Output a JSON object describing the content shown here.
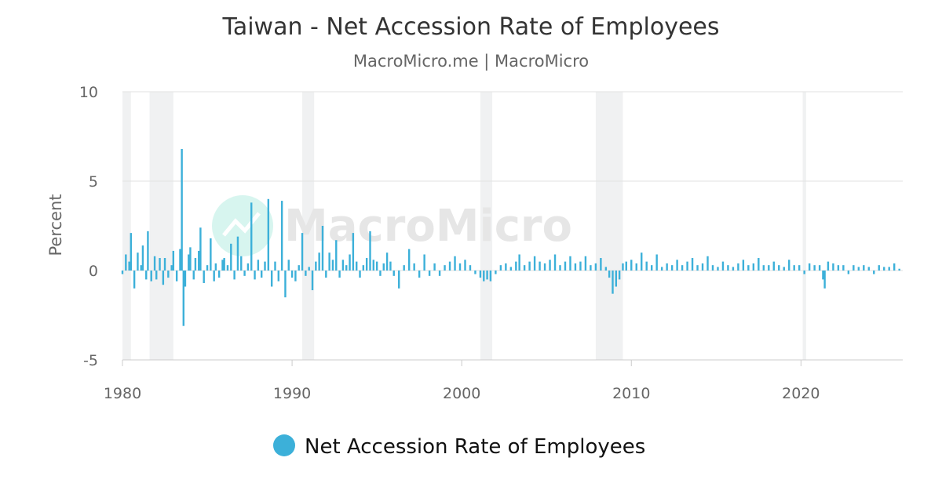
{
  "chart_data": {
    "type": "bar",
    "title": "Taiwan - Net Accession Rate of Employees",
    "subtitle": "MacroMicro.me | MacroMicro",
    "ylabel": "Percent",
    "xlabel": "",
    "ylim": [
      -5,
      10
    ],
    "yticks": [
      10,
      5,
      0,
      -5
    ],
    "xlim": [
      1980,
      2026
    ],
    "xticks": [
      1980,
      1990,
      2000,
      2010,
      2020
    ],
    "grid": true,
    "legend_position": "bottom-center",
    "watermark": "MacroMicro",
    "recession_periods": [
      [
        1980.0,
        1980.5
      ],
      [
        1981.6,
        1983.0
      ],
      [
        1990.6,
        1991.3
      ],
      [
        2001.1,
        2001.8
      ],
      [
        2007.9,
        2009.5
      ],
      [
        2020.1,
        2020.3
      ]
    ],
    "series": [
      {
        "name": "Net Accession Rate of Employees",
        "color": "#3cb0d9",
        "points": [
          [
            1980.0,
            -0.2
          ],
          [
            1980.2,
            0.9
          ],
          [
            1980.4,
            0.5
          ],
          [
            1980.5,
            2.1
          ],
          [
            1980.7,
            -1.0
          ],
          [
            1980.9,
            1.0
          ],
          [
            1981.1,
            0.3
          ],
          [
            1981.2,
            1.4
          ],
          [
            1981.4,
            -0.5
          ],
          [
            1981.5,
            2.2
          ],
          [
            1981.7,
            -0.6
          ],
          [
            1981.9,
            0.8
          ],
          [
            1982.0,
            -0.5
          ],
          [
            1982.2,
            0.7
          ],
          [
            1982.4,
            -0.8
          ],
          [
            1982.5,
            0.7
          ],
          [
            1982.7,
            -0.4
          ],
          [
            1982.9,
            0.3
          ],
          [
            1983.0,
            1.1
          ],
          [
            1983.2,
            -0.6
          ],
          [
            1983.4,
            1.2
          ],
          [
            1983.5,
            6.8
          ],
          [
            1983.6,
            -3.1
          ],
          [
            1983.7,
            -0.9
          ],
          [
            1983.9,
            0.9
          ],
          [
            1984.0,
            1.3
          ],
          [
            1984.2,
            -0.5
          ],
          [
            1984.3,
            0.7
          ],
          [
            1984.5,
            1.1
          ],
          [
            1984.6,
            2.4
          ],
          [
            1984.8,
            -0.7
          ],
          [
            1985.0,
            0.3
          ],
          [
            1985.2,
            1.8
          ],
          [
            1985.4,
            -0.6
          ],
          [
            1985.5,
            0.4
          ],
          [
            1985.7,
            -0.4
          ],
          [
            1985.9,
            0.6
          ],
          [
            1986.0,
            0.7
          ],
          [
            1986.2,
            0.3
          ],
          [
            1986.4,
            1.5
          ],
          [
            1986.6,
            -0.5
          ],
          [
            1986.8,
            1.9
          ],
          [
            1987.0,
            0.8
          ],
          [
            1987.2,
            -0.3
          ],
          [
            1987.4,
            0.4
          ],
          [
            1987.6,
            3.8
          ],
          [
            1987.8,
            -0.5
          ],
          [
            1988.0,
            0.6
          ],
          [
            1988.2,
            -0.4
          ],
          [
            1988.4,
            0.5
          ],
          [
            1988.6,
            4.0
          ],
          [
            1988.8,
            -0.9
          ],
          [
            1989.0,
            0.5
          ],
          [
            1989.2,
            -0.6
          ],
          [
            1989.4,
            3.9
          ],
          [
            1989.6,
            -1.5
          ],
          [
            1989.8,
            0.6
          ],
          [
            1990.0,
            -0.4
          ],
          [
            1990.2,
            -0.6
          ],
          [
            1990.4,
            0.3
          ],
          [
            1990.6,
            2.1
          ],
          [
            1990.8,
            -0.3
          ],
          [
            1991.0,
            0.2
          ],
          [
            1991.2,
            -1.1
          ],
          [
            1991.4,
            0.5
          ],
          [
            1991.6,
            1.0
          ],
          [
            1991.8,
            2.5
          ],
          [
            1992.0,
            -0.4
          ],
          [
            1992.2,
            1.0
          ],
          [
            1992.4,
            0.6
          ],
          [
            1992.6,
            1.7
          ],
          [
            1992.8,
            -0.4
          ],
          [
            1993.0,
            0.6
          ],
          [
            1993.2,
            0.3
          ],
          [
            1993.4,
            0.9
          ],
          [
            1993.6,
            2.1
          ],
          [
            1993.8,
            0.5
          ],
          [
            1994.0,
            -0.4
          ],
          [
            1994.2,
            0.3
          ],
          [
            1994.4,
            0.7
          ],
          [
            1994.6,
            2.2
          ],
          [
            1994.8,
            0.6
          ],
          [
            1995.0,
            0.5
          ],
          [
            1995.2,
            -0.3
          ],
          [
            1995.4,
            0.4
          ],
          [
            1995.6,
            1.0
          ],
          [
            1995.8,
            0.5
          ],
          [
            1996.0,
            -0.3
          ],
          [
            1996.3,
            -1.0
          ],
          [
            1996.6,
            0.3
          ],
          [
            1996.9,
            1.2
          ],
          [
            1997.2,
            0.4
          ],
          [
            1997.5,
            -0.4
          ],
          [
            1997.8,
            0.9
          ],
          [
            1998.1,
            -0.3
          ],
          [
            1998.4,
            0.4
          ],
          [
            1998.7,
            -0.3
          ],
          [
            1999.0,
            0.3
          ],
          [
            1999.3,
            0.5
          ],
          [
            1999.6,
            0.8
          ],
          [
            1999.9,
            0.4
          ],
          [
            2000.2,
            0.6
          ],
          [
            2000.5,
            0.3
          ],
          [
            2000.8,
            -0.2
          ],
          [
            2001.1,
            -0.4
          ],
          [
            2001.3,
            -0.6
          ],
          [
            2001.5,
            -0.5
          ],
          [
            2001.7,
            -0.6
          ],
          [
            2002.0,
            -0.2
          ],
          [
            2002.3,
            0.3
          ],
          [
            2002.6,
            0.4
          ],
          [
            2002.9,
            0.2
          ],
          [
            2003.2,
            0.5
          ],
          [
            2003.4,
            0.9
          ],
          [
            2003.7,
            0.3
          ],
          [
            2004.0,
            0.5
          ],
          [
            2004.3,
            0.8
          ],
          [
            2004.6,
            0.5
          ],
          [
            2004.9,
            0.4
          ],
          [
            2005.2,
            0.6
          ],
          [
            2005.5,
            0.9
          ],
          [
            2005.8,
            0.3
          ],
          [
            2006.1,
            0.5
          ],
          [
            2006.4,
            0.8
          ],
          [
            2006.7,
            0.4
          ],
          [
            2007.0,
            0.5
          ],
          [
            2007.3,
            0.8
          ],
          [
            2007.6,
            0.3
          ],
          [
            2007.9,
            0.4
          ],
          [
            2008.2,
            0.7
          ],
          [
            2008.5,
            0.2
          ],
          [
            2008.7,
            -0.4
          ],
          [
            2008.9,
            -1.3
          ],
          [
            2009.1,
            -0.9
          ],
          [
            2009.3,
            -0.5
          ],
          [
            2009.5,
            0.4
          ],
          [
            2009.7,
            0.5
          ],
          [
            2010.0,
            0.6
          ],
          [
            2010.3,
            0.4
          ],
          [
            2010.6,
            1.0
          ],
          [
            2010.9,
            0.5
          ],
          [
            2011.2,
            0.3
          ],
          [
            2011.5,
            0.9
          ],
          [
            2011.8,
            0.2
          ],
          [
            2012.1,
            0.4
          ],
          [
            2012.4,
            0.3
          ],
          [
            2012.7,
            0.6
          ],
          [
            2013.0,
            0.3
          ],
          [
            2013.3,
            0.5
          ],
          [
            2013.6,
            0.7
          ],
          [
            2013.9,
            0.3
          ],
          [
            2014.2,
            0.4
          ],
          [
            2014.5,
            0.8
          ],
          [
            2014.8,
            0.3
          ],
          [
            2015.1,
            0.2
          ],
          [
            2015.4,
            0.5
          ],
          [
            2015.7,
            0.3
          ],
          [
            2016.0,
            0.2
          ],
          [
            2016.3,
            0.4
          ],
          [
            2016.6,
            0.6
          ],
          [
            2016.9,
            0.3
          ],
          [
            2017.2,
            0.4
          ],
          [
            2017.5,
            0.7
          ],
          [
            2017.8,
            0.3
          ],
          [
            2018.1,
            0.3
          ],
          [
            2018.4,
            0.5
          ],
          [
            2018.7,
            0.3
          ],
          [
            2019.0,
            0.2
          ],
          [
            2019.3,
            0.6
          ],
          [
            2019.6,
            0.3
          ],
          [
            2019.9,
            0.3
          ],
          [
            2020.2,
            -0.2
          ],
          [
            2020.5,
            0.4
          ],
          [
            2020.8,
            0.3
          ],
          [
            2021.1,
            0.3
          ],
          [
            2021.3,
            -0.5
          ],
          [
            2021.4,
            -1.0
          ],
          [
            2021.6,
            0.5
          ],
          [
            2021.9,
            0.4
          ],
          [
            2022.2,
            0.3
          ],
          [
            2022.5,
            0.3
          ],
          [
            2022.8,
            -0.2
          ],
          [
            2023.1,
            0.3
          ],
          [
            2023.4,
            0.2
          ],
          [
            2023.7,
            0.3
          ],
          [
            2024.0,
            0.2
          ],
          [
            2024.3,
            -0.2
          ],
          [
            2024.6,
            0.3
          ],
          [
            2024.9,
            0.2
          ],
          [
            2025.2,
            0.2
          ],
          [
            2025.5,
            0.4
          ],
          [
            2025.8,
            0.1
          ]
        ]
      }
    ]
  }
}
